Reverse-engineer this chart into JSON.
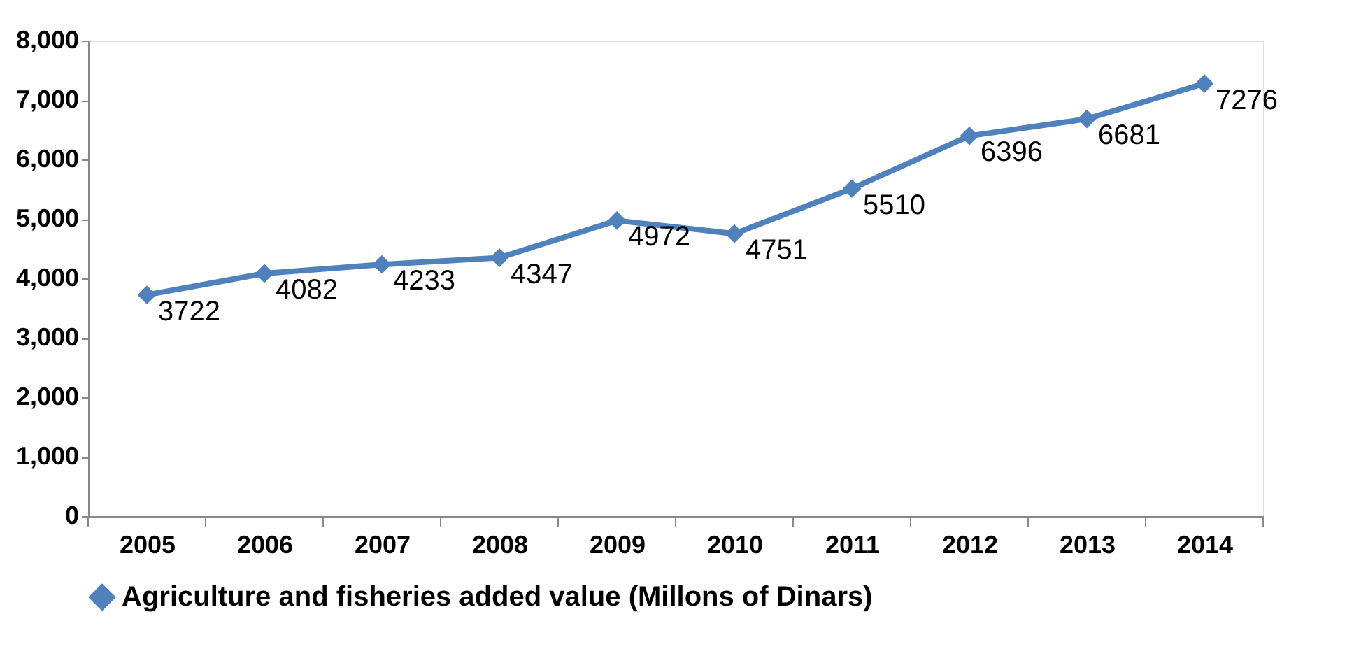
{
  "chart_data": {
    "type": "line",
    "categories": [
      "2005",
      "2006",
      "2007",
      "2008",
      "2009",
      "2010",
      "2011",
      "2012",
      "2013",
      "2014"
    ],
    "series": [
      {
        "name": "Agriculture and fisheries added value (Millons of Dinars)",
        "color": "#4f81bd",
        "values": [
          3722,
          4082,
          4233,
          4347,
          4972,
          4751,
          5510,
          6396,
          6681,
          7276
        ]
      }
    ],
    "ylim": [
      0,
      8000
    ],
    "yticks": [
      {
        "value": 0,
        "label": "0"
      },
      {
        "value": 1000,
        "label": "1,000"
      },
      {
        "value": 2000,
        "label": "2,000"
      },
      {
        "value": 3000,
        "label": "3,000"
      },
      {
        "value": 4000,
        "label": "4,000"
      },
      {
        "value": 5000,
        "label": "5,000"
      },
      {
        "value": 6000,
        "label": "6,000"
      },
      {
        "value": 7000,
        "label": "7,000"
      },
      {
        "value": 8000,
        "label": "8,000"
      }
    ],
    "data_labels": true,
    "marker": "diamond",
    "line_style": "solid",
    "legend": "bottom",
    "grid": false
  }
}
